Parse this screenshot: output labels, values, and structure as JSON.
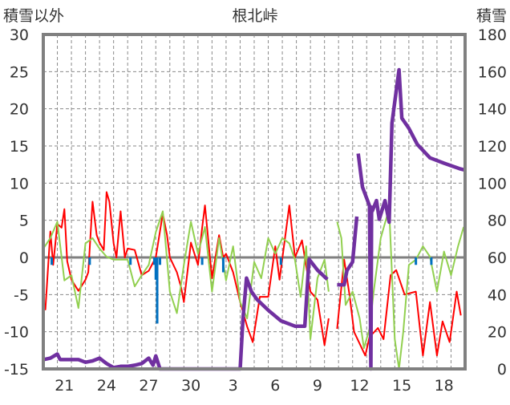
{
  "chart_data": {
    "type": "line",
    "title": "根北峠",
    "ylabel_left": "積雪以外",
    "ylabel_right": "積雪",
    "ylim_left": [
      -15,
      30
    ],
    "ylim_right": [
      0,
      180
    ],
    "yticks_left": [
      30,
      25,
      20,
      15,
      10,
      5,
      0,
      -5,
      -10,
      -15
    ],
    "yticks_right": [
      180,
      160,
      140,
      120,
      100,
      80,
      60,
      40,
      20,
      0
    ],
    "xlim_days": [
      0,
      30
    ],
    "x_ticks": [
      {
        "t": 1.5,
        "label": "21"
      },
      {
        "t": 4.5,
        "label": "24"
      },
      {
        "t": 7.5,
        "label": "27"
      },
      {
        "t": 10.5,
        "label": "30"
      },
      {
        "t": 13.5,
        "label": "3"
      },
      {
        "t": 16.5,
        "label": "6"
      },
      {
        "t": 19.5,
        "label": "9"
      },
      {
        "t": 22.5,
        "label": "12"
      },
      {
        "t": 25.5,
        "label": "15"
      },
      {
        "t": 28.5,
        "label": "18"
      }
    ],
    "grid": true,
    "colors": {
      "red": "#ff0000",
      "green": "#92d050",
      "blue": "#0070c0",
      "purple": "#7030a0",
      "frame": "#808080"
    },
    "series": [
      {
        "name": "red",
        "axis": "left",
        "kind": "line",
        "color": "#ff0000",
        "points": [
          [
            0,
            -5.7
          ],
          [
            0.15,
            -7
          ],
          [
            0.5,
            3.5
          ],
          [
            0.7,
            -1
          ],
          [
            1,
            4.5
          ],
          [
            1.3,
            4
          ],
          [
            1.5,
            6.5
          ],
          [
            1.7,
            -0.5
          ],
          [
            2,
            -3
          ],
          [
            2.5,
            -4.5
          ],
          [
            3,
            -3
          ],
          [
            3.2,
            -2
          ],
          [
            3.5,
            7.5
          ],
          [
            3.8,
            3
          ],
          [
            4,
            2
          ],
          [
            4.3,
            1
          ],
          [
            4.5,
            8.8
          ],
          [
            4.7,
            7.5
          ],
          [
            5,
            1.9
          ],
          [
            5.2,
            0
          ],
          [
            5.5,
            6.2
          ],
          [
            5.8,
            0
          ],
          [
            6,
            1.2
          ],
          [
            6.5,
            1
          ],
          [
            6.8,
            -1
          ],
          [
            7,
            -2.4
          ],
          [
            7.5,
            -1.8
          ],
          [
            8,
            0
          ],
          [
            8.5,
            5.9
          ],
          [
            8.8,
            3
          ],
          [
            9,
            0
          ],
          [
            9.5,
            -2
          ],
          [
            9.8,
            -4
          ],
          [
            10,
            -6
          ],
          [
            10.5,
            2
          ],
          [
            11,
            -1
          ],
          [
            11.3,
            4
          ],
          [
            11.5,
            7
          ],
          [
            11.8,
            1
          ],
          [
            12,
            -2.8
          ],
          [
            12.5,
            3
          ],
          [
            12.8,
            0
          ],
          [
            13,
            0.5
          ],
          [
            13.5,
            -2
          ],
          [
            14,
            -6
          ],
          [
            14.5,
            -9.3
          ],
          [
            14.9,
            -11.4
          ],
          [
            15.4,
            -5.3
          ],
          [
            16,
            -5.3
          ],
          [
            16.5,
            1.5
          ],
          [
            16.8,
            -3
          ],
          [
            17.5,
            7
          ],
          [
            17.9,
            0
          ],
          [
            18.4,
            2.3
          ],
          [
            19,
            -4.6
          ],
          [
            19.5,
            -5.7
          ],
          [
            20,
            -11.8
          ],
          [
            20.3,
            -8.2
          ],
          [
            20.6,
            null
          ],
          [
            20.9,
            -9.6
          ],
          [
            21.4,
            -0.3
          ],
          [
            21.8,
            -5.3
          ],
          [
            22.1,
            -10
          ],
          [
            22.9,
            -13.2
          ],
          [
            23.2,
            -10.7
          ],
          [
            23.8,
            -9.5
          ],
          [
            24.2,
            -11
          ],
          [
            24.7,
            -2.4
          ],
          [
            25.1,
            -1.7
          ],
          [
            25.7,
            -5
          ],
          [
            26.5,
            -4.6
          ],
          [
            27,
            -13.2
          ],
          [
            27.5,
            -6
          ],
          [
            28,
            -13.2
          ],
          [
            28.4,
            -8.6
          ],
          [
            28.9,
            -11.4
          ],
          [
            29.4,
            -4.6
          ],
          [
            29.7,
            -7.8
          ]
        ]
      },
      {
        "name": "green",
        "axis": "left",
        "kind": "line",
        "color": "#92d050",
        "points": [
          [
            0,
            1.2
          ],
          [
            0.5,
            2.6
          ],
          [
            1,
            4.8
          ],
          [
            1.5,
            -3.1
          ],
          [
            2,
            -2.4
          ],
          [
            2.5,
            -6.8
          ],
          [
            3,
            1.9
          ],
          [
            3.5,
            2.6
          ],
          [
            4,
            1.2
          ],
          [
            4.5,
            0.1
          ],
          [
            5,
            -0.3
          ],
          [
            5.5,
            -0.3
          ],
          [
            6,
            -0.3
          ],
          [
            6.5,
            -3.9
          ],
          [
            7,
            -2.4
          ],
          [
            7.5,
            -1
          ],
          [
            8,
            3.4
          ],
          [
            8.5,
            6.2
          ],
          [
            9,
            -4.6
          ],
          [
            9.5,
            -7.5
          ],
          [
            10,
            -1
          ],
          [
            10.5,
            4.8
          ],
          [
            11,
            0.5
          ],
          [
            11.5,
            4.1
          ],
          [
            12,
            -4.6
          ],
          [
            12.5,
            2.6
          ],
          [
            13,
            -3.1
          ],
          [
            13.5,
            1.5
          ],
          [
            14,
            -6
          ],
          [
            14.5,
            -8.2
          ],
          [
            15,
            -0.6
          ],
          [
            15.5,
            -2.8
          ],
          [
            16,
            2.6
          ],
          [
            16.5,
            0.5
          ],
          [
            17,
            2.6
          ],
          [
            17.5,
            1.9
          ],
          [
            17.9,
            -0.3
          ],
          [
            18.3,
            -5.3
          ],
          [
            18.7,
            1.5
          ],
          [
            19,
            -11
          ],
          [
            19.5,
            -2.8
          ],
          [
            20,
            -0.3
          ],
          [
            20.3,
            -4.6
          ],
          [
            20.6,
            null
          ],
          [
            20.9,
            4.8
          ],
          [
            21.2,
            2.6
          ],
          [
            21.5,
            -6.4
          ],
          [
            22,
            -4.6
          ],
          [
            22.5,
            -8.2
          ],
          [
            22.8,
            -12.2
          ],
          [
            23.2,
            -9.6
          ],
          [
            23.5,
            -4.6
          ],
          [
            24,
            2.6
          ],
          [
            24.6,
            6.6
          ],
          [
            25,
            -11
          ],
          [
            25.3,
            -15
          ],
          [
            25.6,
            -10
          ],
          [
            26,
            -1
          ],
          [
            26.5,
            -0.3
          ],
          [
            27,
            1.5
          ],
          [
            27.5,
            0.1
          ],
          [
            28,
            -4.6
          ],
          [
            28.5,
            0.8
          ],
          [
            29,
            -2.4
          ],
          [
            29.5,
            1.5
          ],
          [
            29.9,
            4.1
          ]
        ]
      },
      {
        "name": "blue",
        "axis": "left",
        "kind": "bar",
        "color": "#0070c0",
        "points": [
          [
            0.6,
            -1
          ],
          [
            3.3,
            -1
          ],
          [
            6.2,
            -1
          ],
          [
            7.9,
            -1
          ],
          [
            8.0,
            -3
          ],
          [
            8.1,
            -8.9
          ],
          [
            8.3,
            -1
          ],
          [
            11.3,
            -1
          ],
          [
            12.8,
            -2
          ],
          [
            16.9,
            -1
          ],
          [
            26.5,
            -1
          ],
          [
            27.6,
            -1
          ]
        ]
      },
      {
        "name": "purple",
        "axis": "right",
        "kind": "line",
        "color": "#7030a0",
        "points": [
          [
            0,
            5
          ],
          [
            0.5,
            5.8
          ],
          [
            1,
            8
          ],
          [
            1.2,
            5
          ],
          [
            1.5,
            5
          ],
          [
            2,
            5
          ],
          [
            2.5,
            5
          ],
          [
            3,
            3.6
          ],
          [
            3.5,
            4.3
          ],
          [
            4,
            5.8
          ],
          [
            4.5,
            2.9
          ],
          [
            5,
            0.7
          ],
          [
            5.5,
            1.4
          ],
          [
            6,
            1.4
          ],
          [
            6.5,
            2
          ],
          [
            7,
            2.9
          ],
          [
            7.5,
            5.8
          ],
          [
            7.8,
            2
          ],
          [
            8,
            7
          ],
          [
            8.3,
            0
          ],
          [
            14,
            0
          ],
          [
            14.2,
            27
          ],
          [
            14.45,
            48.9
          ],
          [
            14.8,
            41.7
          ],
          [
            15.2,
            37.4
          ],
          [
            16,
            31.6
          ],
          [
            16.9,
            25.9
          ],
          [
            17.9,
            23
          ],
          [
            18.6,
            23
          ],
          [
            18.9,
            59
          ],
          [
            19.5,
            53.2
          ],
          [
            20.2,
            48.2
          ],
          [
            20.5,
            null
          ],
          [
            20.9,
            45.3
          ],
          [
            21.4,
            45.3
          ],
          [
            21.6,
            53
          ],
          [
            22,
            57.6
          ],
          [
            22.3,
            82
          ],
          [
            22.35,
            null
          ],
          [
            22.4,
            115.9
          ],
          [
            22.7,
            97.9
          ],
          [
            23.2,
            87.8
          ],
          [
            23.3,
            0
          ],
          [
            23.35,
            87
          ],
          [
            23.4,
            85
          ],
          [
            23.7,
            90.6
          ],
          [
            23.9,
            80.5
          ],
          [
            24.3,
            90.6
          ],
          [
            24.6,
            79
          ],
          [
            24.8,
            132.3
          ],
          [
            25.1,
            149.6
          ],
          [
            25.3,
            161
          ],
          [
            25.5,
            135
          ],
          [
            26,
            129.5
          ],
          [
            26.6,
            120.8
          ],
          [
            27.5,
            113.6
          ],
          [
            28.5,
            110.7
          ],
          [
            29.6,
            107.8
          ],
          [
            30,
            107
          ]
        ]
      }
    ]
  }
}
